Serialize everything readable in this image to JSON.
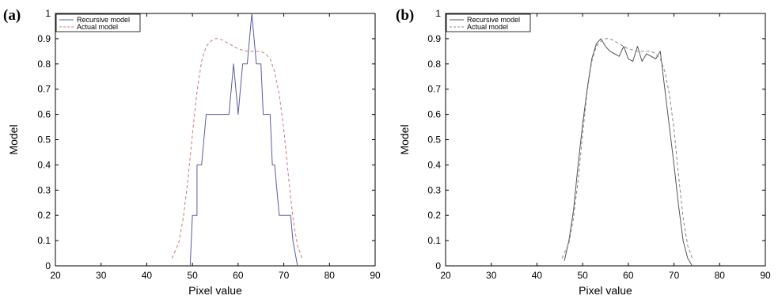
{
  "chart_data": [
    {
      "type": "line",
      "panel_label": "(a)",
      "xlabel": "Pixel value",
      "ylabel": "Model",
      "xlim": [
        20,
        90
      ],
      "ylim": [
        0,
        1
      ],
      "x_ticks": [
        20,
        30,
        40,
        50,
        60,
        70,
        80,
        90
      ],
      "y_ticks": [
        0,
        0.1,
        0.2,
        0.3,
        0.4,
        0.5,
        0.6,
        0.7,
        0.8,
        0.9,
        1
      ],
      "y_tick_labels": [
        "0",
        "0.1",
        "0.2",
        "0.3",
        "0.4",
        "0.5",
        "0.6",
        "0.7",
        "0.8",
        "0.9",
        "1"
      ],
      "grid": false,
      "legend": "top-left",
      "series": [
        {
          "name": "Recursive model",
          "style": "solid",
          "color": "#5a5aa8",
          "points": [
            [
              49.5,
              0
            ],
            [
              50,
              0.2
            ],
            [
              51,
              0.2
            ],
            [
              51,
              0.4
            ],
            [
              52,
              0.4
            ],
            [
              53,
              0.6
            ],
            [
              54,
              0.6
            ],
            [
              55,
              0.6
            ],
            [
              56,
              0.6
            ],
            [
              57,
              0.6
            ],
            [
              58,
              0.6
            ],
            [
              59,
              0.8
            ],
            [
              60,
              0.6
            ],
            [
              61,
              0.8
            ],
            [
              62,
              0.8
            ],
            [
              63,
              1.0
            ],
            [
              64,
              0.8
            ],
            [
              65,
              0.8
            ],
            [
              65.5,
              0.6
            ],
            [
              66,
              0.6
            ],
            [
              67,
              0.6
            ],
            [
              67.5,
              0.4
            ],
            [
              68,
              0.4
            ],
            [
              69,
              0.2
            ],
            [
              70,
              0.2
            ],
            [
              71,
              0.2
            ],
            [
              71.5,
              0.2
            ],
            [
              72,
              0.1
            ],
            [
              73,
              0
            ]
          ]
        },
        {
          "name": "Actual model",
          "style": "dashed",
          "color": "#d27a7a",
          "points": [
            [
              45.5,
              0.03
            ],
            [
              47,
              0.09
            ],
            [
              48,
              0.19
            ],
            [
              49,
              0.34
            ],
            [
              50,
              0.52
            ],
            [
              51,
              0.69
            ],
            [
              52,
              0.81
            ],
            [
              53,
              0.87
            ],
            [
              54,
              0.89
            ],
            [
              55,
              0.9
            ],
            [
              56,
              0.9
            ],
            [
              57,
              0.89
            ],
            [
              58,
              0.88
            ],
            [
              59,
              0.87
            ],
            [
              60,
              0.86
            ],
            [
              61,
              0.855
            ],
            [
              62,
              0.85
            ],
            [
              63,
              0.85
            ],
            [
              64,
              0.85
            ],
            [
              65,
              0.85
            ],
            [
              66,
              0.84
            ],
            [
              67,
              0.82
            ],
            [
              68,
              0.77
            ],
            [
              69,
              0.68
            ],
            [
              70,
              0.54
            ],
            [
              71,
              0.36
            ],
            [
              72,
              0.19
            ],
            [
              73,
              0.08
            ],
            [
              74,
              0.03
            ]
          ]
        }
      ]
    },
    {
      "type": "line",
      "panel_label": "(b)",
      "xlabel": "Pixel value",
      "ylabel": "Model",
      "xlim": [
        20,
        90
      ],
      "ylim": [
        0,
        1
      ],
      "x_ticks": [
        20,
        30,
        40,
        50,
        60,
        70,
        80,
        90
      ],
      "y_ticks": [
        0,
        0.1,
        0.2,
        0.3,
        0.4,
        0.5,
        0.6,
        0.7,
        0.8,
        0.9,
        1
      ],
      "y_tick_labels": [
        "0",
        "0.1",
        "0.2",
        "0.3",
        "0.4",
        "0.5",
        "0.6",
        "0.7",
        "0.8",
        "0.9",
        "1"
      ],
      "grid": false,
      "legend": "top-left",
      "series": [
        {
          "name": "Recursive model",
          "style": "solid",
          "color": "#555555",
          "points": [
            [
              46,
              0.02
            ],
            [
              47,
              0.1
            ],
            [
              48,
              0.22
            ],
            [
              49,
              0.4
            ],
            [
              50,
              0.56
            ],
            [
              51,
              0.7
            ],
            [
              52,
              0.82
            ],
            [
              53,
              0.88
            ],
            [
              54,
              0.9
            ],
            [
              55,
              0.87
            ],
            [
              56,
              0.85
            ],
            [
              57,
              0.84
            ],
            [
              58,
              0.83
            ],
            [
              59,
              0.87
            ],
            [
              60,
              0.82
            ],
            [
              61,
              0.81
            ],
            [
              62,
              0.87
            ],
            [
              63,
              0.81
            ],
            [
              64,
              0.84
            ],
            [
              65,
              0.83
            ],
            [
              66,
              0.82
            ],
            [
              67,
              0.85
            ],
            [
              68,
              0.7
            ],
            [
              69,
              0.55
            ],
            [
              70,
              0.4
            ],
            [
              71,
              0.24
            ],
            [
              72,
              0.1
            ],
            [
              73,
              0.03
            ],
            [
              74,
              0
            ]
          ]
        },
        {
          "name": "Actual model",
          "style": "dashed",
          "color": "#888888",
          "points": [
            [
              45.5,
              0.03
            ],
            [
              47,
              0.09
            ],
            [
              48,
              0.19
            ],
            [
              49,
              0.34
            ],
            [
              50,
              0.52
            ],
            [
              51,
              0.69
            ],
            [
              52,
              0.81
            ],
            [
              53,
              0.87
            ],
            [
              54,
              0.89
            ],
            [
              55,
              0.9
            ],
            [
              56,
              0.9
            ],
            [
              57,
              0.89
            ],
            [
              58,
              0.88
            ],
            [
              59,
              0.87
            ],
            [
              60,
              0.86
            ],
            [
              61,
              0.855
            ],
            [
              62,
              0.85
            ],
            [
              63,
              0.85
            ],
            [
              64,
              0.85
            ],
            [
              65,
              0.85
            ],
            [
              66,
              0.84
            ],
            [
              67,
              0.82
            ],
            [
              68,
              0.77
            ],
            [
              69,
              0.68
            ],
            [
              70,
              0.54
            ],
            [
              71,
              0.36
            ],
            [
              72,
              0.19
            ],
            [
              73,
              0.08
            ],
            [
              74,
              0.03
            ]
          ]
        }
      ]
    }
  ]
}
